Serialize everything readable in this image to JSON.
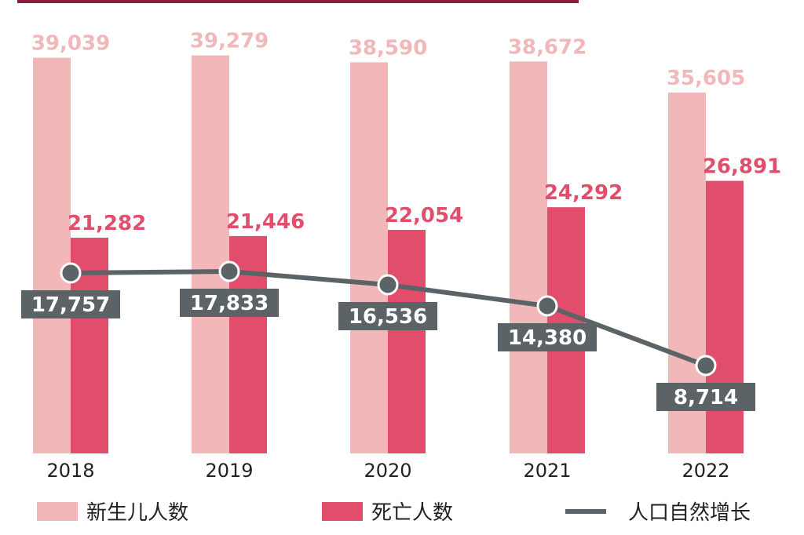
{
  "chart_data": {
    "type": "bar",
    "categories": [
      "2018",
      "2019",
      "2020",
      "2021",
      "2022"
    ],
    "series": [
      {
        "name": "新生儿人数",
        "kind": "bar",
        "color": "#f2b8b9",
        "values": [
          39039,
          39279,
          38590,
          38672,
          35605
        ],
        "labels": [
          "39,039",
          "39,279",
          "38,590",
          "38,672",
          "35,605"
        ]
      },
      {
        "name": "死亡人数",
        "kind": "bar",
        "color": "#e04e6c",
        "values": [
          21282,
          21446,
          22054,
          24292,
          26891
        ],
        "labels": [
          "21,282",
          "21,446",
          "22,054",
          "24,292",
          "26,891"
        ]
      },
      {
        "name": "人口自然增长",
        "kind": "line",
        "color": "#5b6366",
        "values": [
          17757,
          17833,
          16536,
          14380,
          8714
        ],
        "labels": [
          "17,757",
          "17,833",
          "16,536",
          "14,380",
          "8,714"
        ]
      }
    ],
    "ylim": [
      0,
      40000
    ],
    "grid": false,
    "legend_position": "bottom",
    "accent_bar_color": "#8c1c3c"
  }
}
